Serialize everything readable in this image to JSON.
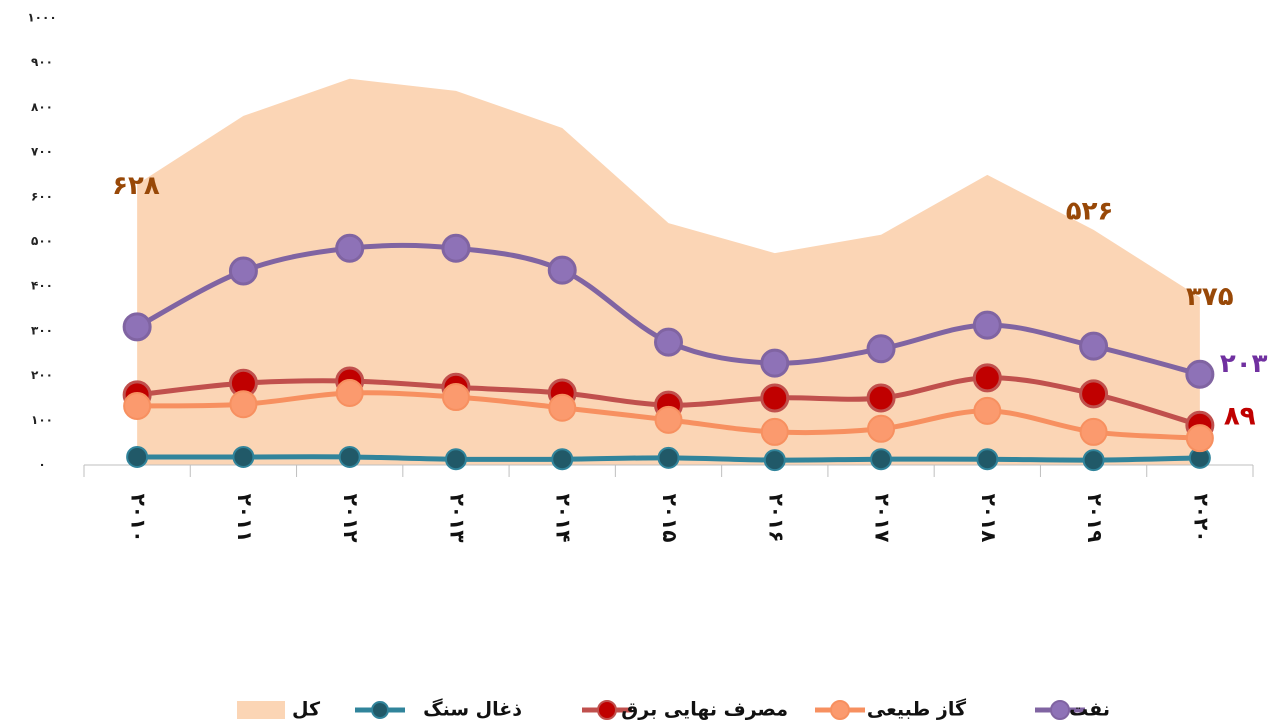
{
  "chart_data": {
    "type": "line",
    "categories": [
      "۲۰۱۰",
      "۲۰۱۱",
      "۲۰۱۲",
      "۲۰۱۳",
      "۲۰۱۴",
      "۲۰۱۵",
      "۲۰۱۶",
      "۲۰۱۷",
      "۲۰۱۸",
      "۲۰۱۹",
      "۲۰۲۰"
    ],
    "ylim": [
      0,
      1000
    ],
    "yticks": [
      {
        "value": 0,
        "label": "۰"
      },
      {
        "value": 100,
        "label": "۱۰۰"
      },
      {
        "value": 200,
        "label": "۲۰۰"
      },
      {
        "value": 300,
        "label": "۳۰۰"
      },
      {
        "value": 400,
        "label": "۴۰۰"
      },
      {
        "value": 500,
        "label": "۵۰۰"
      },
      {
        "value": 600,
        "label": "۶۰۰"
      },
      {
        "value": 700,
        "label": "۷۰۰"
      },
      {
        "value": 800,
        "label": "۸۰۰"
      },
      {
        "value": 900,
        "label": "۹۰۰"
      },
      {
        "value": 1000,
        "label": "۱۰۰۰"
      }
    ],
    "series": [
      {
        "name": "کل",
        "kind": "area",
        "color": "#fbd5b5",
        "label_color": "#984807",
        "values": [
          628,
          781,
          864,
          837,
          754,
          541,
          474,
          515,
          649,
          526,
          375
        ],
        "value_labels": [
          "۶۲۸",
          null,
          null,
          null,
          null,
          null,
          null,
          null,
          null,
          "۵۲۶",
          "۳۷۵"
        ]
      },
      {
        "name": "ذغال سنگ",
        "kind": "line",
        "color": "#31849b",
        "marker_color": "#215968",
        "values": [
          18,
          18,
          18,
          13,
          13,
          16,
          11,
          13,
          13,
          11,
          16
        ]
      },
      {
        "name": "مصرف نهایی برق",
        "kind": "line",
        "color": "#c0504d",
        "marker_color": "#c00000",
        "label_color": "#c00000",
        "values": [
          157,
          183,
          188,
          174,
          161,
          134,
          150,
          150,
          195,
          159,
          89
        ],
        "value_labels": [
          null,
          null,
          null,
          null,
          null,
          null,
          null,
          null,
          null,
          null,
          "۸۹"
        ]
      },
      {
        "name": "گاز طبیعی",
        "kind": "line",
        "color": "#f79060",
        "marker_color": "#fb9a6e",
        "values": [
          132,
          136,
          161,
          152,
          128,
          101,
          74,
          81,
          121,
          74,
          60
        ]
      },
      {
        "name": "نفت",
        "kind": "line",
        "color": "#8064a2",
        "marker_color": "#8e72b7",
        "label_color": "#7030a0",
        "values": [
          309,
          434,
          485,
          485,
          436,
          275,
          228,
          260,
          313,
          266,
          203
        ],
        "value_labels": [
          null,
          null,
          null,
          null,
          null,
          null,
          null,
          null,
          null,
          null,
          "۲۰۳"
        ]
      }
    ]
  }
}
